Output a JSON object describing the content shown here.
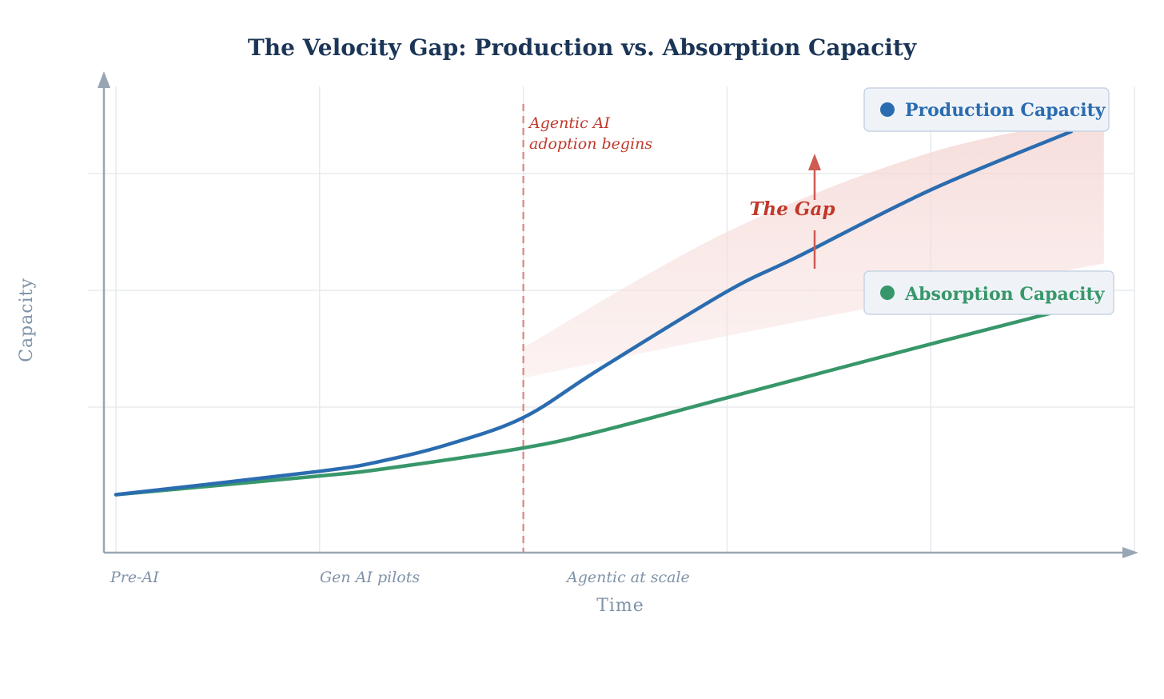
{
  "chart_data": {
    "type": "line",
    "title": "The Velocity Gap: Production vs. Absorption Capacity",
    "xlabel": "Time",
    "ylabel": "Capacity",
    "xlim": [
      0,
      5
    ],
    "ylim": [
      -0.24,
      3.8
    ],
    "grid": true,
    "x_ticks": [
      {
        "x": 0,
        "label": "Pre-AI"
      },
      {
        "x": 1,
        "label": "Gen AI pilots"
      },
      {
        "x": 2.2,
        "label": "Agentic at scale"
      }
    ],
    "x_gridlines": [
      0,
      1,
      2,
      3,
      4,
      5
    ],
    "y_gridlines": [
      1,
      2,
      3
    ],
    "series": [
      {
        "name": "Production Capacity",
        "color": "#2b6cb0",
        "x": [
          0,
          1,
          1.31,
          1.63,
          2,
          2.37,
          3,
          3.35,
          4,
          4.69
        ],
        "y": [
          0.25,
          0.45,
          0.54,
          0.68,
          0.91,
          1.32,
          1.99,
          2.29,
          2.86,
          3.36
        ]
      },
      {
        "name": "Absorption Capacity",
        "color": "#38976a",
        "x": [
          0,
          1,
          1.31,
          2,
          2.37,
          3,
          4,
          4.69
        ],
        "y": [
          0.25,
          0.41,
          0.47,
          0.65,
          0.79,
          1.08,
          1.54,
          1.85
        ]
      }
    ],
    "gap_band": {
      "color": "#f2c4bf",
      "x": [
        2,
        3,
        4,
        4.85
      ],
      "upper": [
        1.51,
        2.5,
        3.18,
        3.49
      ],
      "lower": [
        1.25,
        1.61,
        1.95,
        2.23
      ]
    },
    "annotations": [
      {
        "type": "vline",
        "x": 2,
        "color": "#d98580",
        "lines": [
          "Agentic AI",
          "adoption begins"
        ]
      },
      {
        "type": "arrow",
        "x": 3.43,
        "label": "The Gap",
        "color": "#cd5c52"
      }
    ],
    "legend": [
      "Production Capacity",
      "Absorption Capacity"
    ],
    "legend_placement": "right, inline labels"
  }
}
